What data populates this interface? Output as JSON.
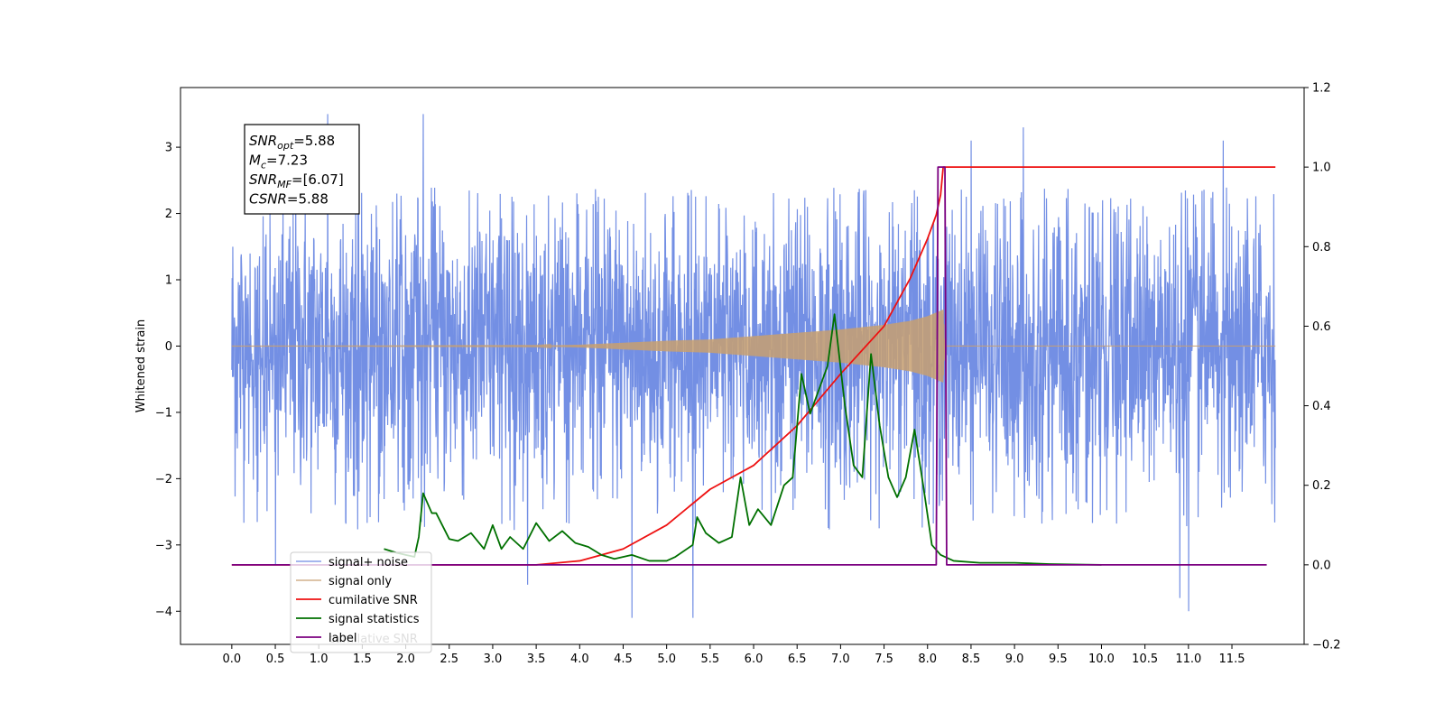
{
  "chart_data": {
    "type": "line",
    "ylabel": "Whitened strain",
    "xlim": [
      -0.59,
      12.33
    ],
    "ylim": [
      -4.5,
      3.9
    ],
    "y2lim": [
      -0.2,
      1.2
    ],
    "x_ticks": [
      "0.0",
      "0.5",
      "1.0",
      "1.5",
      "2.0",
      "2.5",
      "3.0",
      "3.5",
      "4.0",
      "4.5",
      "5.0",
      "5.5",
      "6.0",
      "6.5",
      "7.0",
      "7.5",
      "8.0",
      "8.5",
      "9.0",
      "9.5",
      "10.0",
      "10.5",
      "11.0",
      "11.5"
    ],
    "y_ticks": [
      "3",
      "2",
      "1",
      "0",
      "−1",
      "−2",
      "−3",
      "−4"
    ],
    "y2_ticks": [
      "1.2",
      "1.0",
      "0.8",
      "0.6",
      "0.4",
      "0.2",
      "0.0",
      "−0.2"
    ],
    "legend_placement": "lower-left",
    "annotation": {
      "snr_opt": {
        "base": "SNR",
        "sub": "opt",
        "value": "=5.88"
      },
      "mc": {
        "base": "M",
        "sub": "c",
        "value": "=7.23"
      },
      "snr_mf": {
        "base": "SNR",
        "sub": "MF",
        "value": "=[6.07]"
      },
      "csnr": {
        "base": "CSNR",
        "sub": "",
        "value": "=5.88"
      }
    },
    "series": [
      {
        "name": "signal+ noise",
        "color": "#6c89e3",
        "axis": "left",
        "kind": "noise",
        "x_range": [
          0.0,
          12.0
        ],
        "approx_envelope": [
          -2.8,
          2.4
        ],
        "extreme_points": [
          [
            0.3,
            -2.2
          ],
          [
            0.5,
            -3.3
          ],
          [
            1.1,
            3.5
          ],
          [
            2.2,
            3.5
          ],
          [
            3.4,
            -3.6
          ],
          [
            4.6,
            -4.1
          ],
          [
            5.3,
            -4.1
          ],
          [
            8.5,
            3.1
          ],
          [
            9.1,
            3.3
          ],
          [
            10.9,
            -3.8
          ],
          [
            11.0,
            -4.0
          ],
          [
            11.4,
            3.1
          ]
        ]
      },
      {
        "name": "signal only",
        "color": "#c8a070",
        "axis": "left",
        "kind": "chirp",
        "points": [
          [
            0.0,
            0.0
          ],
          [
            3.5,
            0.005
          ],
          [
            4.0,
            0.02
          ],
          [
            4.5,
            0.05
          ],
          [
            5.0,
            0.08
          ],
          [
            5.5,
            0.1
          ],
          [
            6.0,
            0.15
          ],
          [
            6.5,
            0.2
          ],
          [
            7.0,
            0.25
          ],
          [
            7.5,
            0.32
          ],
          [
            7.8,
            0.38
          ],
          [
            8.0,
            0.45
          ],
          [
            8.18,
            0.55
          ],
          [
            8.2,
            0.0
          ],
          [
            12.0,
            0.0
          ]
        ]
      },
      {
        "name": "cumilative SNR",
        "color": "#ee1111",
        "axis": "right",
        "points": [
          [
            0.0,
            0.0
          ],
          [
            3.5,
            0.0
          ],
          [
            4.0,
            0.01
          ],
          [
            4.5,
            0.04
          ],
          [
            5.0,
            0.1
          ],
          [
            5.5,
            0.19
          ],
          [
            6.0,
            0.25
          ],
          [
            6.5,
            0.35
          ],
          [
            7.0,
            0.48
          ],
          [
            7.5,
            0.6
          ],
          [
            7.8,
            0.72
          ],
          [
            8.0,
            0.82
          ],
          [
            8.1,
            0.88
          ],
          [
            8.15,
            0.93
          ],
          [
            8.18,
            1.0
          ],
          [
            12.0,
            1.0
          ]
        ]
      },
      {
        "name": "signal statistics",
        "color": "#007000",
        "axis": "right",
        "points": [
          [
            1.75,
            0.04
          ],
          [
            1.9,
            0.03
          ],
          [
            2.0,
            0.025
          ],
          [
            2.1,
            0.02
          ],
          [
            2.15,
            0.07
          ],
          [
            2.2,
            0.18
          ],
          [
            2.3,
            0.13
          ],
          [
            2.35,
            0.13
          ],
          [
            2.5,
            0.065
          ],
          [
            2.6,
            0.06
          ],
          [
            2.75,
            0.08
          ],
          [
            2.9,
            0.04
          ],
          [
            3.0,
            0.1
          ],
          [
            3.1,
            0.04
          ],
          [
            3.2,
            0.07
          ],
          [
            3.35,
            0.04
          ],
          [
            3.5,
            0.105
          ],
          [
            3.65,
            0.06
          ],
          [
            3.8,
            0.085
          ],
          [
            3.95,
            0.055
          ],
          [
            4.1,
            0.045
          ],
          [
            4.25,
            0.025
          ],
          [
            4.4,
            0.015
          ],
          [
            4.6,
            0.025
          ],
          [
            4.8,
            0.01
          ],
          [
            5.0,
            0.01
          ],
          [
            5.1,
            0.02
          ],
          [
            5.3,
            0.05
          ],
          [
            5.35,
            0.12
          ],
          [
            5.45,
            0.08
          ],
          [
            5.6,
            0.055
          ],
          [
            5.75,
            0.07
          ],
          [
            5.85,
            0.22
          ],
          [
            5.95,
            0.1
          ],
          [
            6.05,
            0.14
          ],
          [
            6.2,
            0.1
          ],
          [
            6.35,
            0.2
          ],
          [
            6.45,
            0.22
          ],
          [
            6.55,
            0.48
          ],
          [
            6.65,
            0.38
          ],
          [
            6.75,
            0.44
          ],
          [
            6.85,
            0.5
          ],
          [
            6.93,
            0.63
          ],
          [
            7.05,
            0.4
          ],
          [
            7.15,
            0.25
          ],
          [
            7.25,
            0.22
          ],
          [
            7.35,
            0.53
          ],
          [
            7.45,
            0.35
          ],
          [
            7.55,
            0.22
          ],
          [
            7.65,
            0.17
          ],
          [
            7.75,
            0.22
          ],
          [
            7.85,
            0.34
          ],
          [
            7.95,
            0.2
          ],
          [
            8.05,
            0.05
          ],
          [
            8.15,
            0.025
          ],
          [
            8.3,
            0.01
          ],
          [
            8.6,
            0.005
          ],
          [
            9.0,
            0.005
          ],
          [
            9.4,
            0.002
          ],
          [
            10.0,
            0.0
          ]
        ]
      },
      {
        "name": "label",
        "color": "#7b0080",
        "axis": "right",
        "points": [
          [
            0.0,
            0.0
          ],
          [
            8.1,
            0.0
          ],
          [
            8.12,
            1.0
          ],
          [
            8.2,
            1.0
          ],
          [
            8.22,
            0.0
          ],
          [
            11.9,
            0.0
          ]
        ]
      }
    ],
    "legend_overlap_text": "cumilative SNR"
  }
}
